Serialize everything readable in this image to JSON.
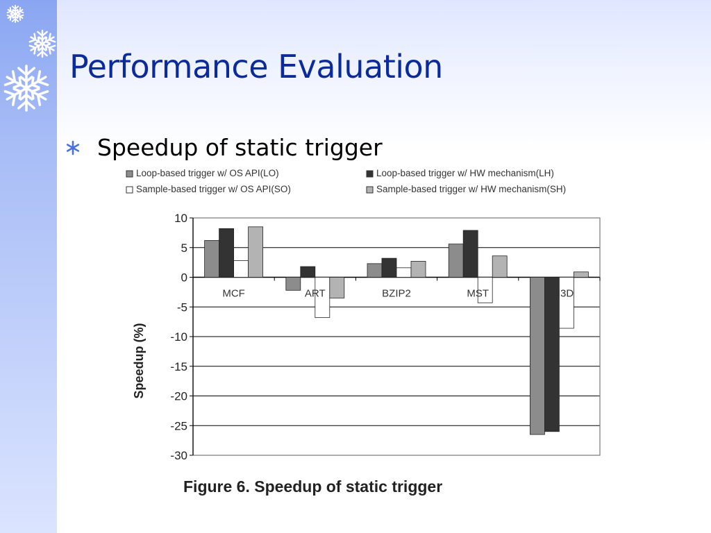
{
  "slide": {
    "title": "Performance Evaluation",
    "bullet": "Speedup of static trigger"
  },
  "chart_data": {
    "type": "bar",
    "caption": "Figure 6. Speedup of static trigger",
    "xlabel": "",
    "ylabel": "Speedup (%)",
    "ylim": [
      -30,
      10
    ],
    "yticks": [
      10,
      5,
      0,
      -5,
      -10,
      -15,
      -20,
      -25,
      -30
    ],
    "grid": true,
    "legend_position": "top",
    "categories": [
      "MCF",
      "ART",
      "BZIP2",
      "MST",
      "EM3D"
    ],
    "series": [
      {
        "name": "Loop-based trigger w/ OS API(LO)",
        "color": "#8c8c8c",
        "values": [
          6.2,
          -2.2,
          2.3,
          5.6,
          -26.5
        ]
      },
      {
        "name": "Loop-based trigger w/ HW mechanism(LH)",
        "color": "#333333",
        "values": [
          8.2,
          1.8,
          3.2,
          7.9,
          -26.0
        ]
      },
      {
        "name": "Sample-based trigger w/ OS API(SO)",
        "color": "#ffffff",
        "values": [
          2.8,
          -6.8,
          1.6,
          -4.3,
          -8.6
        ]
      },
      {
        "name": "Sample-based trigger w/ HW mechanism(SH)",
        "color": "#b3b3b3",
        "values": [
          8.5,
          -3.5,
          2.7,
          3.6,
          0.9
        ]
      }
    ]
  },
  "colors": {
    "title": "#0b2b9b",
    "sidebar": "#a7bcf6",
    "bullet": "#4a6fe0"
  },
  "icons": {
    "sidebar": "snowflake-icon",
    "bullet": "asterisk-icon"
  }
}
